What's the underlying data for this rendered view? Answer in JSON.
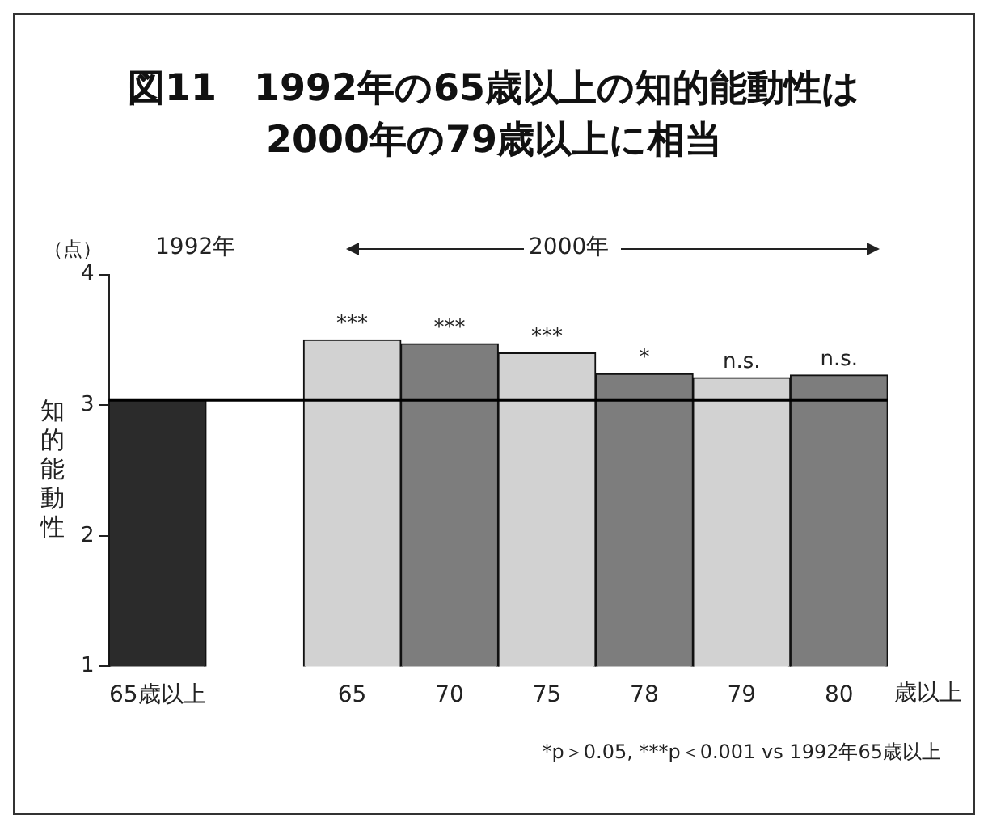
{
  "chart_data": {
    "type": "bar",
    "title": "図11　1992年の65歳以上の知的能動性は\n2000年の79歳以上に相当",
    "ylabel": "知的能動性",
    "categories": [
      "65歳以上",
      null,
      "65",
      "70",
      "75",
      "78",
      "79",
      "80"
    ],
    "values": [
      3.04,
      null,
      3.5,
      3.47,
      3.4,
      3.24,
      3.21,
      3.23
    ],
    "colors": [
      "#2b2b2b",
      null,
      "#d2d2d2",
      "#7d7d7d",
      "#d2d2d2",
      "#7d7d7d",
      "#d2d2d2",
      "#7d7d7d"
    ],
    "value_labels": [
      null,
      null,
      "***",
      "***",
      "***",
      "*",
      "n.s.",
      "n.s."
    ],
    "ylim": [
      1,
      4
    ],
    "yticks": [
      1,
      2,
      3,
      4
    ],
    "grid": false,
    "legend": false,
    "ref_lines": [
      {
        "axis": "y",
        "value": 3.04,
        "color": "#000000"
      }
    ],
    "annotations": [
      "（点）",
      "1992年",
      "2000年",
      "歳以上",
      "*p＞0.05, ***p＜0.001 vs 1992年65歳以上"
    ]
  }
}
